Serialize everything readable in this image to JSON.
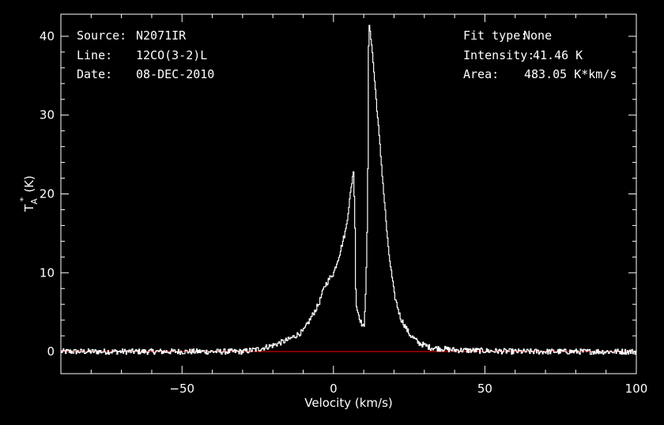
{
  "info_left": [
    {
      "key": "Source:",
      "value": "N2071IR"
    },
    {
      "key": "Line:",
      "value": "12CO(3-2)L"
    },
    {
      "key": "Date:",
      "value": "08-DEC-2010"
    }
  ],
  "info_right": [
    {
      "key": "Fit type:",
      "value": "None"
    },
    {
      "key": "Intensity:",
      "value": "41.46 K"
    },
    {
      "key": "Area:",
      "value": "483.05 K*km/s"
    }
  ],
  "chart_data": {
    "type": "line",
    "xlabel": "Velocity (km/s)",
    "ylabel_main": "T",
    "ylabel_sub": "A",
    "ylabel_sup": "*",
    "ylabel_unit": "(K)",
    "xlim": [
      -90,
      100
    ],
    "ylim": [
      -2.8,
      42.8
    ],
    "xticks": [
      -50,
      0,
      50,
      100
    ],
    "xtick_labels": [
      "−50",
      "0",
      "50",
      "100"
    ],
    "yticks": [
      0,
      10,
      20,
      30,
      40
    ],
    "ytick_labels": [
      "0",
      "10",
      "20",
      "30",
      "40"
    ],
    "baseline": {
      "value": 0,
      "color": "#ff0000"
    },
    "colors": {
      "background": "#000000",
      "axes": "#ffffff",
      "spectrum": "#ffffff"
    },
    "series": [
      {
        "x": [
          -90,
          -60,
          -30,
          -25,
          -20,
          -15,
          -10,
          -5,
          -3,
          -1,
          0,
          2,
          4,
          5,
          6,
          6.5,
          7,
          7.3,
          7.6,
          8,
          9,
          10,
          10.6,
          11.2,
          11.4,
          11.8,
          12.5,
          14,
          16,
          18,
          20,
          22,
          25,
          28,
          32,
          40,
          60,
          100
        ],
        "y": [
          0,
          0,
          0,
          0.3,
          0.8,
          1.5,
          2.6,
          6.0,
          8.3,
          9.5,
          10.0,
          12.5,
          15.5,
          18.5,
          21.5,
          23.0,
          16.0,
          6.5,
          5.5,
          5.0,
          3.7,
          3.0,
          8.5,
          18.0,
          38.0,
          41.5,
          39.0,
          32.0,
          22.5,
          13.0,
          7.2,
          4.3,
          2.2,
          1.1,
          0.5,
          0.2,
          0,
          0
        ]
      }
    ]
  }
}
